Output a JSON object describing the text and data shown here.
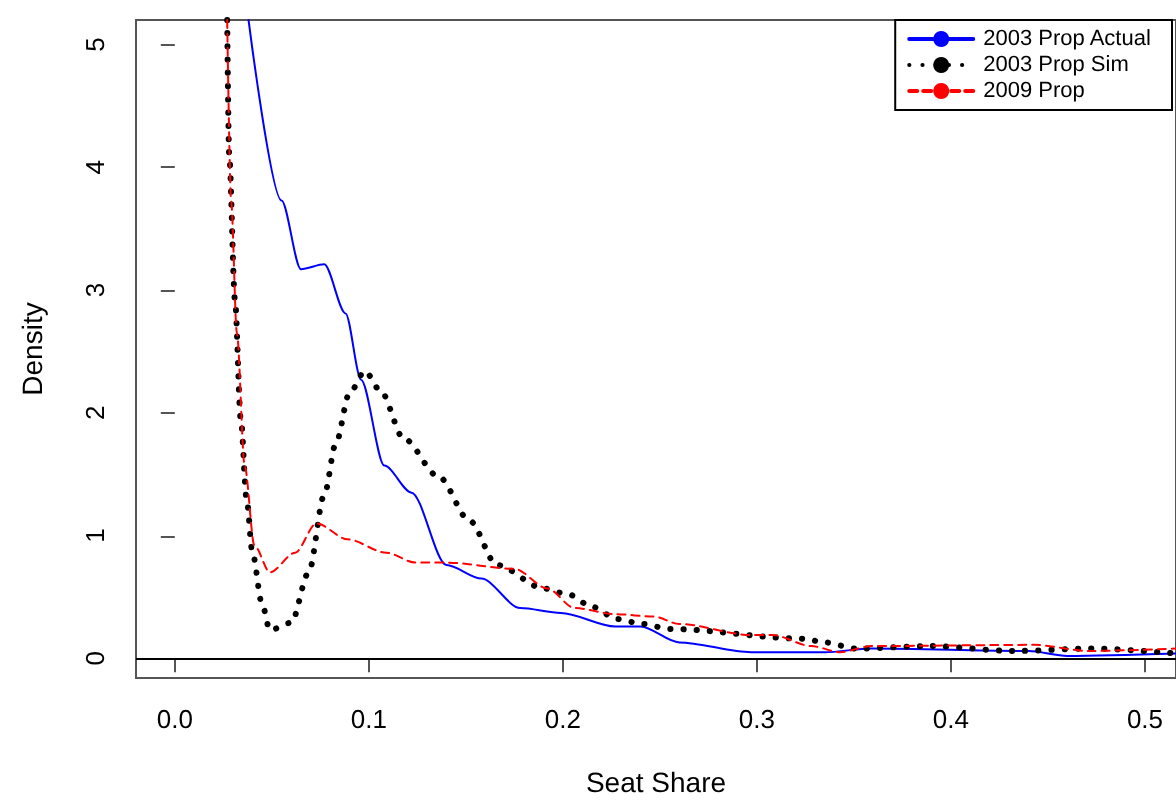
{
  "chart_data": {
    "type": "line",
    "xlabel": "Seat Share",
    "ylabel": "Density",
    "xlim": [
      -0.02,
      0.516
    ],
    "ylim": [
      -0.16,
      5.2
    ],
    "xticks": [
      {
        "value": 0,
        "label": "0.0"
      },
      0.1,
      0.2,
      0.3,
      0.4,
      0.5
    ],
    "yticks": [
      0,
      1,
      2,
      3,
      4,
      5
    ],
    "grid": false,
    "legend": "top right",
    "marker": "none",
    "ref_lines": [
      {
        "axis": "y",
        "value": 0,
        "color": "#000000",
        "line_style": "solid"
      }
    ],
    "series": [
      {
        "name": "2003 Prop Actual",
        "color": "#0000ff",
        "line_style": "solid",
        "x": [
          0.038,
          0.055,
          0.065,
          0.077,
          0.088,
          0.096,
          0.108,
          0.122,
          0.14,
          0.158,
          0.178,
          0.199,
          0.227,
          0.24,
          0.26,
          0.297,
          0.335,
          0.359,
          0.44,
          0.46,
          0.516
        ],
        "values": [
          5.2,
          3.73,
          3.17,
          3.21,
          2.81,
          2.27,
          1.57,
          1.35,
          0.76,
          0.65,
          0.41,
          0.37,
          0.26,
          0.26,
          0.13,
          0.05,
          0.05,
          0.08,
          0.06,
          0.02,
          0.04
        ]
      },
      {
        "name": "2003 Prop Sim",
        "color": "#000000",
        "line_style": "dotted",
        "x": [
          0.027,
          0.028,
          0.031,
          0.034,
          0.037,
          0.04,
          0.045,
          0.049,
          0.06,
          0.069,
          0.077,
          0.083,
          0.09,
          0.098,
          0.106,
          0.118,
          0.136,
          0.152,
          0.166,
          0.19,
          0.203,
          0.215,
          0.228,
          0.241,
          0.255,
          0.324,
          0.335,
          0.351,
          0.39,
          0.432,
          0.473,
          0.516
        ],
        "values": [
          5.2,
          4.11,
          2.92,
          1.95,
          1.3,
          0.86,
          0.44,
          0.23,
          0.29,
          0.7,
          1.33,
          1.75,
          2.16,
          2.34,
          2.18,
          1.79,
          1.48,
          1.12,
          0.76,
          0.57,
          0.52,
          0.42,
          0.32,
          0.28,
          0.24,
          0.16,
          0.13,
          0.08,
          0.1,
          0.06,
          0.08,
          0.04
        ]
      },
      {
        "name": "2009 Prop",
        "color": "#ff0000",
        "line_style": "dashed",
        "x": [
          0.027,
          0.029,
          0.032,
          0.036,
          0.041,
          0.049,
          0.062,
          0.073,
          0.089,
          0.109,
          0.124,
          0.14,
          0.175,
          0.192,
          0.206,
          0.227,
          0.247,
          0.26,
          0.297,
          0.308,
          0.328,
          0.343,
          0.359,
          0.443,
          0.471,
          0.516
        ],
        "values": [
          5.2,
          3.73,
          2.65,
          1.57,
          0.92,
          0.7,
          0.86,
          1.1,
          0.97,
          0.86,
          0.78,
          0.78,
          0.73,
          0.57,
          0.41,
          0.36,
          0.34,
          0.28,
          0.19,
          0.19,
          0.1,
          0.05,
          0.1,
          0.11,
          0.06,
          0.08
        ]
      }
    ]
  }
}
